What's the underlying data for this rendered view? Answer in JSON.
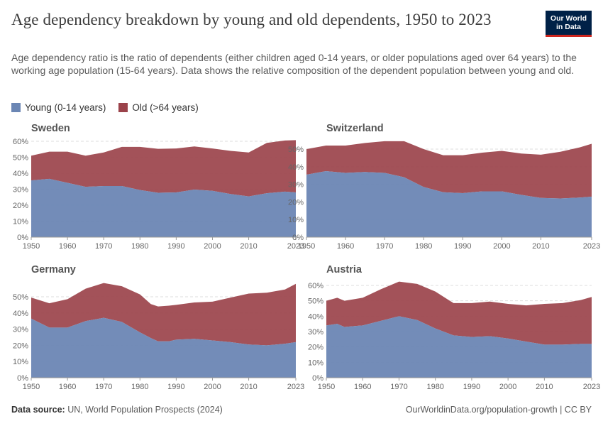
{
  "header": {
    "title": "Age dependency breakdown by young and old dependents, 1950 to 2023",
    "subtitle": "Age dependency ratio is the ratio of dependents (either children aged 0-14 years, or older populations aged over 64 years) to the working age population (15-64 years). Data shows the relative composition of the dependent population between young and old.",
    "logo_line1": "Our World",
    "logo_line2": "in Data"
  },
  "legend": {
    "young_label": "Young (0-14 years)",
    "old_label": "Old (>64 years)"
  },
  "colors": {
    "young": "#6b86b4",
    "old": "#9b434b",
    "logo_bg": "#002147",
    "logo_accent": "#ce261e"
  },
  "footer": {
    "source_label": "Data source:",
    "source_text": "UN, World Population Prospects (2024)",
    "credit": "OurWorldinData.org/population-growth | CC BY"
  },
  "chart_data": [
    {
      "type": "area",
      "stacked": true,
      "title": "Sweden",
      "x": [
        1950,
        1955,
        1960,
        1965,
        1970,
        1975,
        1980,
        1985,
        1990,
        1995,
        2000,
        2005,
        2010,
        2015,
        2020,
        2023
      ],
      "xticks": [
        "1950",
        "1960",
        "1970",
        "1980",
        "1990",
        "2000",
        "2010",
        "2023"
      ],
      "yticks": [
        "0%",
        "10%",
        "20%",
        "30%",
        "40%",
        "50%",
        "60%"
      ],
      "ylim": [
        0,
        60
      ],
      "series": [
        {
          "name": "Young (0-14 years)",
          "values": [
            35.5,
            36.5,
            34,
            31.5,
            32,
            32,
            29.5,
            27.8,
            28,
            29.8,
            29,
            27,
            25.5,
            27.5,
            28.5,
            28
          ]
        },
        {
          "name": "Old (>64 years)",
          "values": [
            15.5,
            17,
            19.5,
            19.5,
            21,
            24.5,
            27,
            27.5,
            27.5,
            27,
            26.5,
            27,
            27.5,
            31.5,
            32,
            32.7
          ]
        }
      ],
      "grid": true
    },
    {
      "type": "area",
      "stacked": true,
      "title": "Switzerland",
      "x": [
        1950,
        1955,
        1960,
        1965,
        1970,
        1975,
        1980,
        1985,
        1990,
        1995,
        2000,
        2005,
        2010,
        2015,
        2020,
        2023
      ],
      "xticks": [
        "1950",
        "1960",
        "1970",
        "1980",
        "1990",
        "2000",
        "2010",
        "2023"
      ],
      "yticks": [
        "0%",
        "10%",
        "20%",
        "30%",
        "40%",
        "50%"
      ],
      "ylim": [
        0,
        55
      ],
      "series": [
        {
          "name": "Young (0-14 years)",
          "values": [
            35.5,
            37.5,
            36.5,
            37,
            36.5,
            34,
            28.5,
            25.5,
            25,
            26,
            26,
            24,
            22.3,
            22,
            22.5,
            23
          ]
        },
        {
          "name": "Old (>64 years)",
          "values": [
            14.5,
            14.5,
            15.5,
            16.5,
            18,
            20.5,
            21.5,
            21,
            21.5,
            22,
            23,
            23.5,
            24.5,
            26.5,
            28.5,
            30
          ]
        }
      ],
      "grid": true
    },
    {
      "type": "area",
      "stacked": true,
      "title": "Germany",
      "x": [
        1950,
        1955,
        1960,
        1965,
        1970,
        1975,
        1980,
        1983,
        1985,
        1988,
        1990,
        1995,
        2000,
        2005,
        2010,
        2015,
        2020,
        2023
      ],
      "xticks": [
        "1950",
        "1960",
        "1970",
        "1980",
        "1990",
        "2000",
        "2010",
        "2023"
      ],
      "yticks": [
        "0%",
        "10%",
        "20%",
        "30%",
        "40%",
        "50%"
      ],
      "ylim": [
        0,
        60
      ],
      "series": [
        {
          "name": "Young (0-14 years)",
          "values": [
            36.5,
            31,
            31,
            35,
            37,
            34.5,
            28,
            24.5,
            22.5,
            22.5,
            23.5,
            24,
            23,
            22,
            20.5,
            20,
            21,
            22
          ]
        },
        {
          "name": "Old (>64 years)",
          "values": [
            13,
            15,
            17.5,
            20,
            21.5,
            22,
            23.5,
            21,
            21.5,
            22,
            21.5,
            22.5,
            24,
            27.5,
            31.5,
            32.5,
            33.5,
            36
          ]
        }
      ],
      "grid": true
    },
    {
      "type": "area",
      "stacked": true,
      "title": "Austria",
      "x": [
        1950,
        1953,
        1955,
        1960,
        1965,
        1970,
        1975,
        1980,
        1985,
        1990,
        1995,
        2000,
        2005,
        2010,
        2015,
        2020,
        2023
      ],
      "xticks": [
        "1950",
        "1960",
        "1970",
        "1980",
        "1990",
        "2000",
        "2010",
        "2023"
      ],
      "yticks": [
        "0%",
        "10%",
        "20%",
        "30%",
        "40%",
        "50%",
        "60%"
      ],
      "ylim": [
        0,
        65
      ],
      "series": [
        {
          "name": "Young (0-14 years)",
          "values": [
            34,
            35,
            33,
            34,
            37,
            40,
            37.5,
            32,
            27.5,
            26.5,
            27,
            25.5,
            23.5,
            21.5,
            21.5,
            22,
            22
          ]
        },
        {
          "name": "Old (>64 years)",
          "values": [
            16,
            17,
            17,
            18,
            20.5,
            22.5,
            23.5,
            24,
            21,
            22,
            22.5,
            22.5,
            23.5,
            26.5,
            27,
            28.5,
            30.5
          ]
        }
      ],
      "grid": true
    }
  ]
}
